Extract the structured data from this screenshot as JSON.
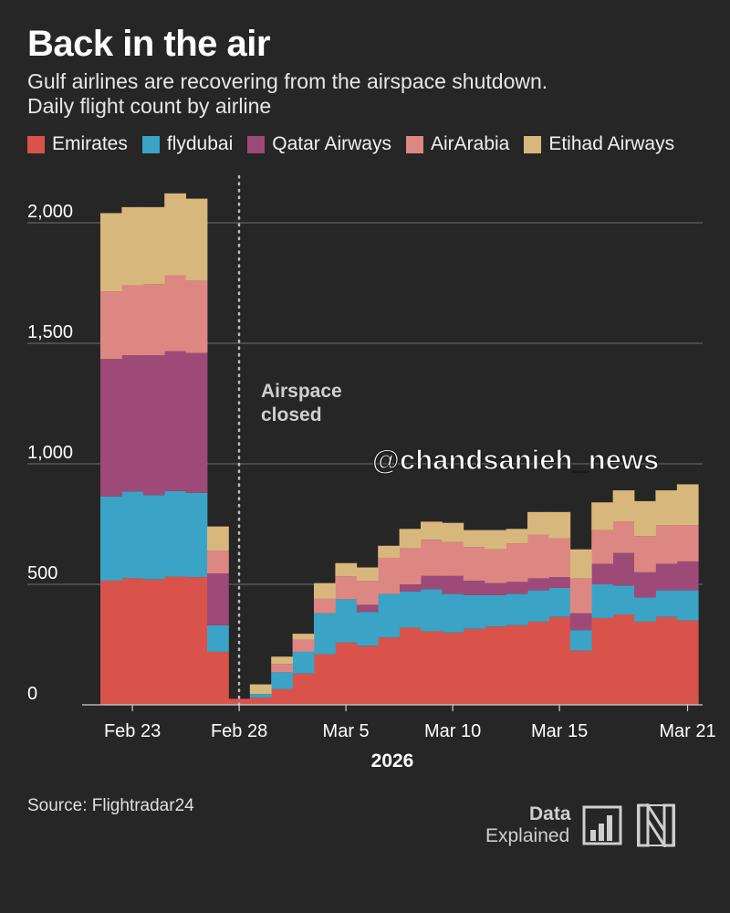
{
  "title": "Back in the air",
  "subtitle_lines": [
    "Gulf airlines are recovering from the airspace shutdown.",
    "Daily flight count by airline"
  ],
  "source": "Source: Flightradar24",
  "watermark": "@chandsanieh_news",
  "brand": {
    "line1": "Data",
    "line2": "Explained",
    "logo_icon": "bar-chart-icon",
    "mark_icon": "n-logo-icon"
  },
  "colors": {
    "background": "#262626",
    "Emirates": "#d9534b",
    "flydubai": "#3aa3c6",
    "Qatar Airways": "#9e4a78",
    "AirArabia": "#dd8783",
    "Etihad Airways": "#d8b77d"
  },
  "chart_data": {
    "type": "area",
    "stacked": true,
    "step": true,
    "x": [
      "Feb 22",
      "Feb 23",
      "Feb 24",
      "Feb 25",
      "Feb 26",
      "Feb 27",
      "Feb 28",
      "Mar 1",
      "Mar 2",
      "Mar 3",
      "Mar 4",
      "Mar 5",
      "Mar 6",
      "Mar 7",
      "Mar 8",
      "Mar 9",
      "Mar 10",
      "Mar 11",
      "Mar 12",
      "Mar 13",
      "Mar 14",
      "Mar 15",
      "Mar 16",
      "Mar 17",
      "Mar 18",
      "Mar 19",
      "Mar 20",
      "Mar 21"
    ],
    "xticks": [
      "Feb 23",
      "Feb 28",
      "Mar 5",
      "Mar 10",
      "Mar 15",
      "Mar 21"
    ],
    "xlabel": "2026",
    "ylim": [
      0,
      2200
    ],
    "yticks": [
      0,
      500,
      1000,
      1500,
      2000
    ],
    "ytick_labels": [
      "0",
      "500",
      "1,000",
      "1,500",
      "2,000"
    ],
    "grid": true,
    "legend_position": "top",
    "annotation": {
      "text_lines": [
        "Airspace",
        "closed"
      ],
      "at": "Mar 1"
    },
    "series": [
      {
        "name": "Emirates",
        "values": [
          515,
          525,
          520,
          532,
          530,
          220,
          25,
          30,
          65,
          130,
          210,
          258,
          245,
          280,
          320,
          305,
          300,
          315,
          325,
          330,
          345,
          365,
          225,
          360,
          375,
          345,
          365,
          350
        ]
      },
      {
        "name": "flydubai",
        "values": [
          350,
          360,
          350,
          355,
          350,
          110,
          0,
          15,
          70,
          90,
          170,
          180,
          140,
          180,
          150,
          175,
          160,
          140,
          130,
          130,
          130,
          120,
          85,
          140,
          120,
          100,
          110,
          125
        ]
      },
      {
        "name": "Qatar Airways",
        "values": [
          570,
          565,
          580,
          580,
          580,
          215,
          0,
          0,
          0,
          0,
          0,
          0,
          30,
          0,
          30,
          55,
          75,
          60,
          50,
          50,
          50,
          45,
          70,
          85,
          135,
          105,
          110,
          120
        ]
      },
      {
        "name": "AirArabia",
        "values": [
          280,
          290,
          295,
          315,
          300,
          95,
          0,
          0,
          35,
          50,
          60,
          95,
          100,
          150,
          150,
          150,
          140,
          140,
          140,
          160,
          180,
          160,
          145,
          140,
          130,
          150,
          160,
          150
        ]
      },
      {
        "name": "Etihad Airways",
        "values": [
          325,
          325,
          320,
          340,
          340,
          100,
          0,
          40,
          30,
          25,
          65,
          55,
          55,
          50,
          80,
          75,
          80,
          70,
          80,
          60,
          95,
          110,
          120,
          115,
          130,
          145,
          145,
          170
        ]
      }
    ]
  }
}
